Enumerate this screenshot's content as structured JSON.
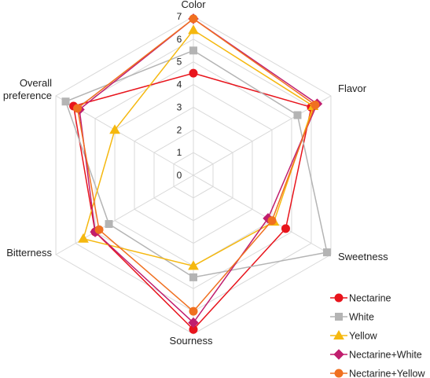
{
  "chart_data": {
    "type": "radar",
    "axes": [
      "Color",
      "Flavor",
      "Sweetness",
      "Sourness",
      "Bitterness",
      "Overall\npreference"
    ],
    "ticks": [
      "0",
      "1",
      "2",
      "3",
      "4",
      "5",
      "6",
      "7"
    ],
    "range": [
      0,
      7
    ],
    "legend_position": "bottom-right",
    "series": [
      {
        "name": "Nectarine",
        "values": [
          4.5,
          6.0,
          4.7,
          6.8,
          5.0,
          6.1
        ],
        "color": "#e8141c",
        "marker": "circle"
      },
      {
        "name": "White",
        "values": [
          5.5,
          5.3,
          6.8,
          4.5,
          4.3,
          6.5
        ],
        "color": "#b4b4b4",
        "marker": "square"
      },
      {
        "name": "Yellow",
        "values": [
          6.4,
          6.1,
          4.1,
          4.0,
          5.6,
          4.0
        ],
        "color": "#f5b80f",
        "marker": "triangle"
      },
      {
        "name": "Nectarine+White",
        "values": [
          6.9,
          6.3,
          3.8,
          6.5,
          5.0,
          5.8
        ],
        "color": "#c01e6e",
        "marker": "diamond"
      },
      {
        "name": "Nectarine+Yellow",
        "values": [
          6.9,
          6.2,
          4.0,
          6.0,
          4.8,
          5.9
        ],
        "color": "#f07020",
        "marker": "circle"
      }
    ]
  }
}
